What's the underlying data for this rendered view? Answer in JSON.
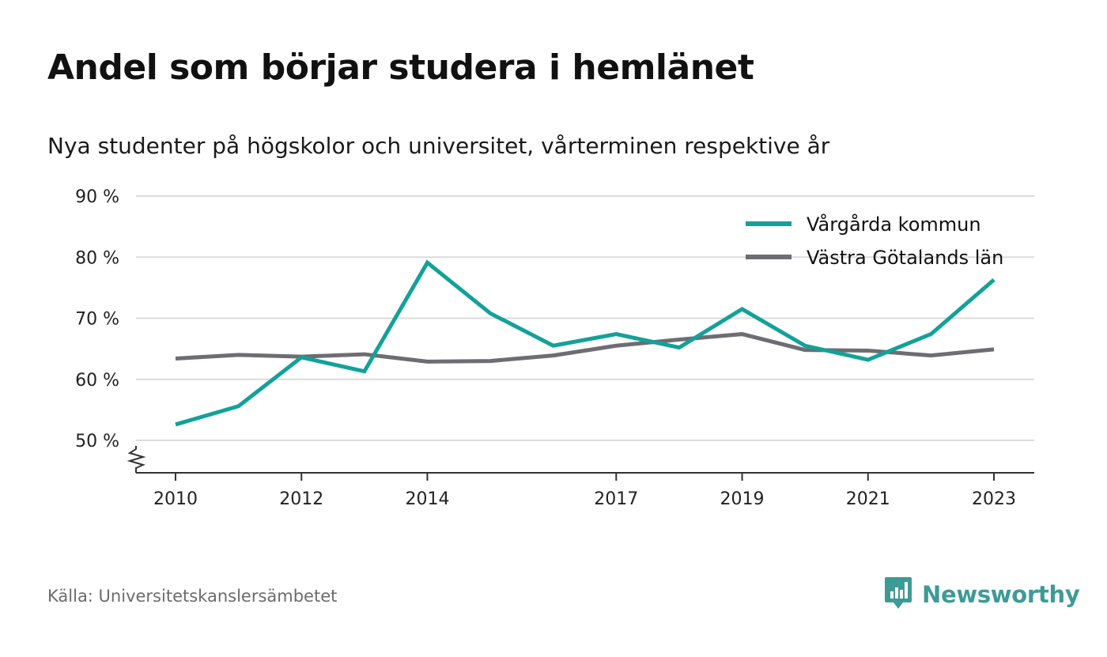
{
  "title": "Andel som börjar studera i hemlänet",
  "subtitle": "Nya studenter på högskolor och universitet, vårterminen respektive år",
  "source": "Källa: Universitetskanslersämbetet",
  "brand": {
    "name": "Newsworthy",
    "icon": "newsworthy-logo-icon",
    "color": "#3d9b96"
  },
  "chart_data": {
    "type": "line",
    "x": [
      2010,
      2011,
      2012,
      2013,
      2014,
      2015,
      2016,
      2017,
      2018,
      2019,
      2020,
      2021,
      2022,
      2023
    ],
    "x_tick_labels": [
      "2010",
      "2012",
      "2014",
      "2017",
      "2019",
      "2021",
      "2023"
    ],
    "y_ticks": [
      50,
      60,
      70,
      80,
      90
    ],
    "y_tick_labels": [
      "50 %",
      "60 %",
      "70 %",
      "80 %",
      "90 %"
    ],
    "ylim": [
      50,
      90
    ],
    "y_axis_break": true,
    "grid": true,
    "legend_position": "top-right",
    "series": [
      {
        "name": "Vårgårda kommun",
        "color": "#13a199",
        "values": [
          52.6,
          55.6,
          63.6,
          61.3,
          79.1,
          70.8,
          65.5,
          67.4,
          65.2,
          71.5,
          65.5,
          63.2,
          67.4,
          76.3
        ]
      },
      {
        "name": "Västra Götalands län",
        "color": "#6d6d72",
        "values": [
          63.4,
          64.0,
          63.7,
          64.1,
          62.9,
          63.0,
          63.9,
          65.5,
          66.5,
          67.4,
          64.8,
          64.7,
          63.9,
          64.9
        ]
      }
    ]
  }
}
